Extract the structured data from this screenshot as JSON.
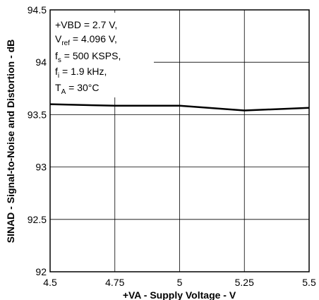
{
  "chart_data": {
    "type": "line",
    "xlabel": "+VA - Supply Voltage - V",
    "ylabel": "SINAD - Signal-to-Noise and Distortion - dB",
    "xlim": [
      4.5,
      5.5
    ],
    "ylim": [
      92,
      94.5
    ],
    "x_ticks": [
      "4.5",
      "4.75",
      "5",
      "5.25",
      "5.5"
    ],
    "y_ticks": [
      "92",
      "92.5",
      "93",
      "93.5",
      "94",
      "94.5"
    ],
    "grid": true,
    "series": [
      {
        "x": [
          4.5,
          4.75,
          5.0,
          5.25,
          5.5
        ],
        "y": [
          93.6,
          93.585,
          93.585,
          93.54,
          93.565
        ],
        "color": "#000000"
      }
    ],
    "annotation": {
      "line1": "+VBD = 2.7 V,",
      "line2_main": "V",
      "line2_sub": "ref",
      "line2_rest": " = 4.096 V,",
      "line3_main": "f",
      "line3_sub": "s",
      "line3_rest": " = 500 KSPS,",
      "line4_main": "f",
      "line4_sub": "i",
      "line4_rest": " = 1.9 kHz,",
      "line5_main": "T",
      "line5_sub": "A",
      "line5_rest": " = 30°C"
    }
  }
}
